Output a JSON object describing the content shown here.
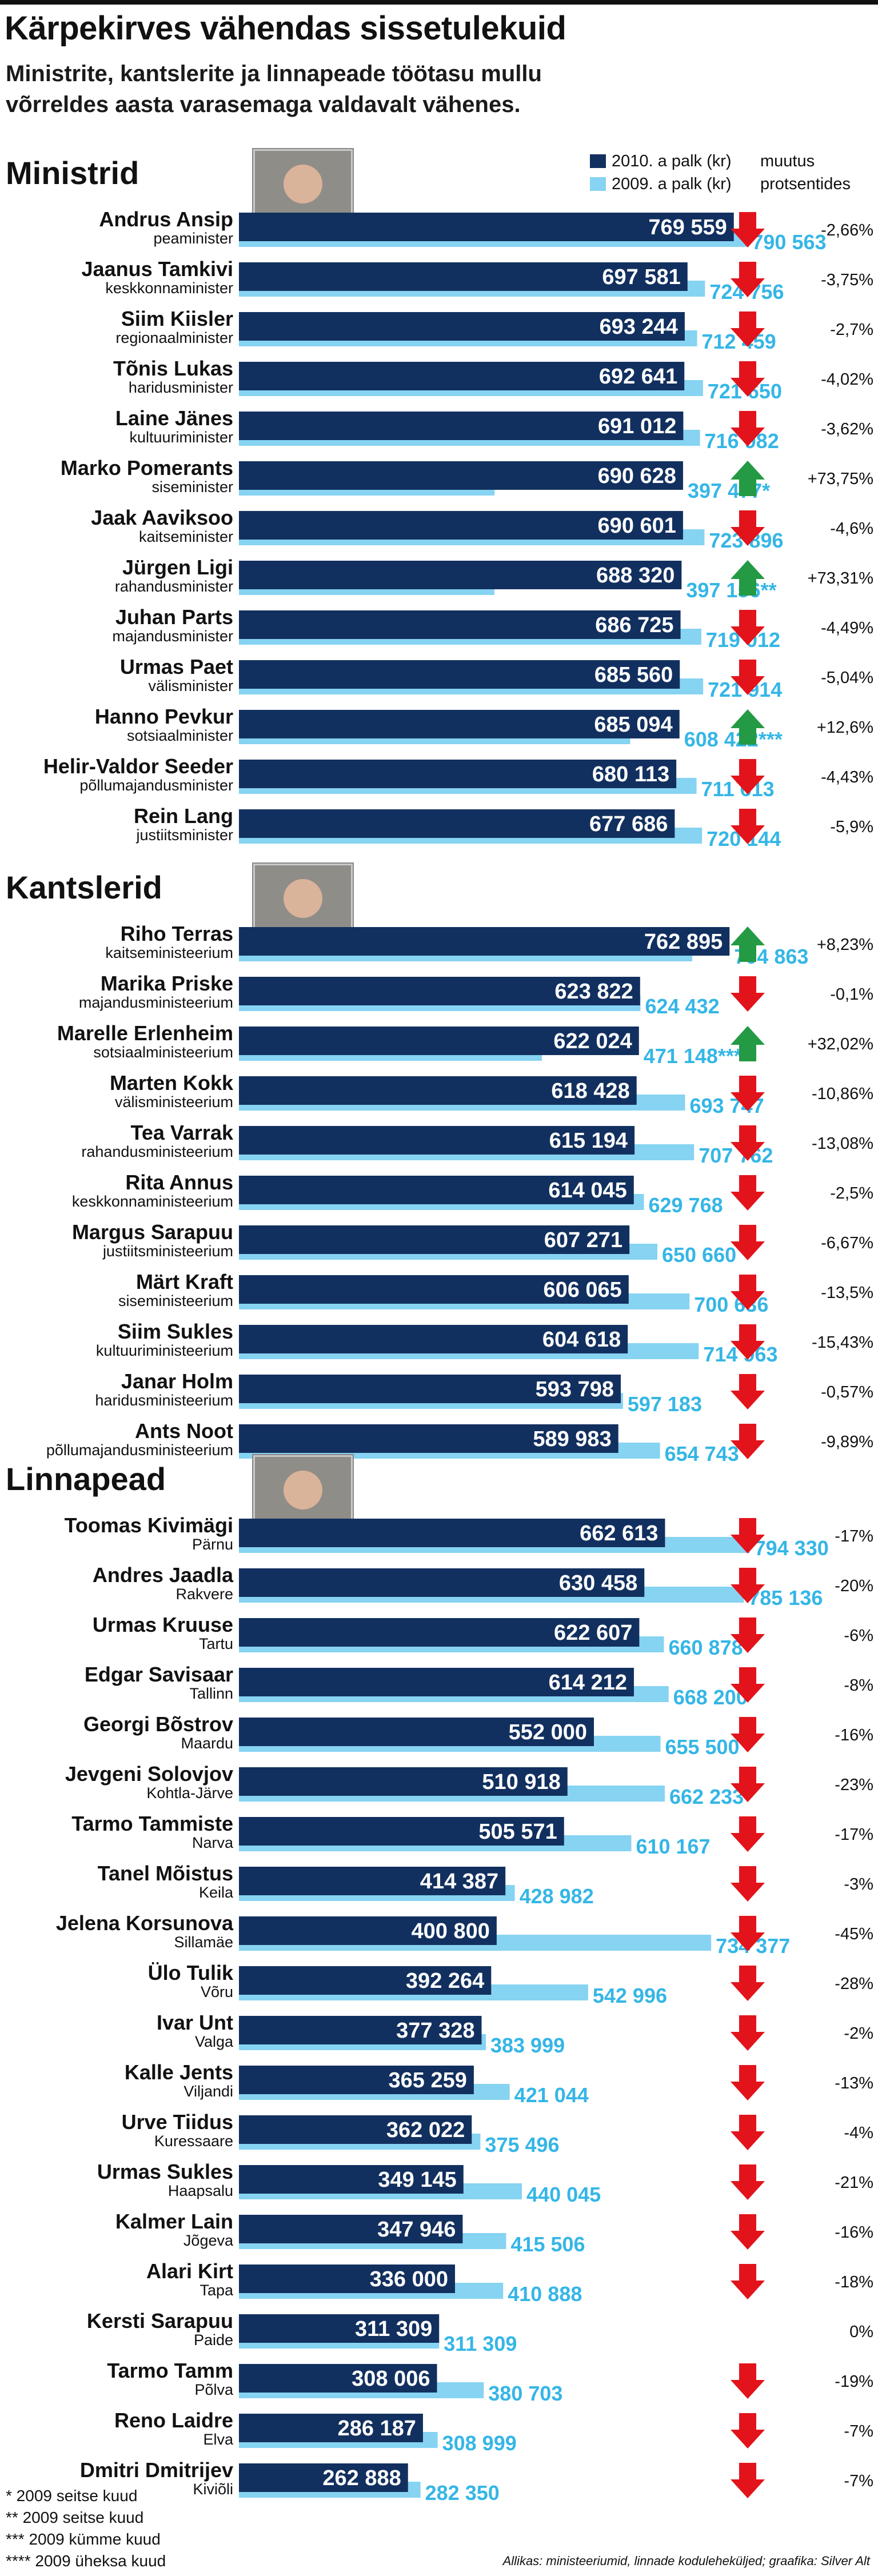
{
  "header": {
    "title": "Kärpekirves vähendas sissetulekuid",
    "subtitle": "Ministrite, kantslerite ja linnapeade töötasu mullu võrreldes aasta varasemaga valdavalt vähenes."
  },
  "legend": {
    "series_2010": "2010. a palk (kr)",
    "series_2009": "2009. a palk (kr)",
    "change_line1": "muutus",
    "change_line2": "protsentides"
  },
  "colors": {
    "bar_2010": "#12305f",
    "bar_2009": "#86d3f2",
    "label_2009": "#35b6e6",
    "arrow_down": "#e3131b",
    "arrow_up": "#239a43"
  },
  "footnotes": [
    "* 2009 seitse kuud",
    "** 2009 seitse kuud",
    "*** 2009 kümme kuud",
    "**** 2009 üheksa kuud"
  ],
  "source": "Allikas: ministeeriumid, linnade koduleheküljed; graafika: Silver Alt",
  "chart_data": [
    {
      "type": "bar",
      "title": "Ministrid",
      "photo": "portrait-icon",
      "xlim": [
        0,
        800000
      ],
      "rows": [
        {
          "name": "Andrus Ansip",
          "role": "peaminister",
          "v2010": 769559,
          "v2009": 790563,
          "label2010": "769 559",
          "label2009": "790 563",
          "change": "-2,66%",
          "dir": "down"
        },
        {
          "name": "Jaanus Tamkivi",
          "role": "keskkonnaminister",
          "v2010": 697581,
          "v2009": 724756,
          "label2010": "697 581",
          "label2009": "724 756",
          "change": "-3,75%",
          "dir": "down"
        },
        {
          "name": "Siim Kiisler",
          "role": "regionaalminister",
          "v2010": 693244,
          "v2009": 712459,
          "label2010": "693 244",
          "label2009": "712 459",
          "change": "-2,7%",
          "dir": "down"
        },
        {
          "name": "Tõnis Lukas",
          "role": "haridusminister",
          "v2010": 692641,
          "v2009": 721650,
          "label2010": "692 641",
          "label2009": "721 650",
          "change": "-4,02%",
          "dir": "down"
        },
        {
          "name": "Laine Jänes",
          "role": "kultuuriminister",
          "v2010": 691012,
          "v2009": 716982,
          "label2010": "691 012",
          "label2009": "716 982",
          "change": "-3,62%",
          "dir": "down"
        },
        {
          "name": "Marko Pomerants",
          "role": "siseminister",
          "v2010": 690628,
          "v2009": 397477,
          "label2010": "690 628",
          "label2009": "397 477*",
          "change": "+73,75%",
          "dir": "up"
        },
        {
          "name": "Jaak Aaviksoo",
          "role": "kaitseminister",
          "v2010": 690601,
          "v2009": 723896,
          "label2010": "690 601",
          "label2009": "723 896",
          "change": "-4,6%",
          "dir": "down"
        },
        {
          "name": "Jürgen Ligi",
          "role": "rahandusminister",
          "v2010": 688320,
          "v2009": 397156,
          "label2010": "688 320",
          "label2009": "397 156**",
          "change": "+73,31%",
          "dir": "up"
        },
        {
          "name": "Juhan Parts",
          "role": "majandusminister",
          "v2010": 686725,
          "v2009": 719012,
          "label2010": "686 725",
          "label2009": "719 012",
          "change": "-4,49%",
          "dir": "down"
        },
        {
          "name": "Urmas Paet",
          "role": "välisminister",
          "v2010": 685560,
          "v2009": 721914,
          "label2010": "685 560",
          "label2009": "721 914",
          "change": "-5,04%",
          "dir": "down"
        },
        {
          "name": "Hanno Pevkur",
          "role": "sotsiaalminister",
          "v2010": 685094,
          "v2009": 608422,
          "label2010": "685 094",
          "label2009": "608 422***",
          "change": "+12,6%",
          "dir": "up"
        },
        {
          "name": "Helir-Valdor Seeder",
          "role": "põllumajandusminister",
          "v2010": 680113,
          "v2009": 711613,
          "label2010": "680 113",
          "label2009": "711 613",
          "change": "-4,43%",
          "dir": "down"
        },
        {
          "name": "Rein Lang",
          "role": "justiitsminister",
          "v2010": 677686,
          "v2009": 720144,
          "label2010": "677 686",
          "label2009": "720 144",
          "change": "-5,9%",
          "dir": "down"
        }
      ]
    },
    {
      "type": "bar",
      "title": "Kantslerid",
      "photo": "portrait-icon",
      "xlim": [
        0,
        800000
      ],
      "rows": [
        {
          "name": "Riho Terras",
          "role": "kaitseministeerium",
          "v2010": 762895,
          "v2009": 704863,
          "label2010": "762 895",
          "label2009": "704 863",
          "change": "+8,23%",
          "dir": "up"
        },
        {
          "name": "Marika Priske",
          "role": "majandusministeerium",
          "v2010": 623822,
          "v2009": 624432,
          "label2010": "623 822",
          "label2009": "624 432",
          "change": "-0,1%",
          "dir": "down"
        },
        {
          "name": "Marelle Erlenheim",
          "role": "sotsiaalministeerium",
          "v2010": 622024,
          "v2009": 471148,
          "label2010": "622 024",
          "label2009": "471 148****",
          "change": "+32,02%",
          "dir": "up"
        },
        {
          "name": "Marten Kokk",
          "role": "välisministeerium",
          "v2010": 618428,
          "v2009": 693747,
          "label2010": "618 428",
          "label2009": "693 747",
          "change": "-10,86%",
          "dir": "down"
        },
        {
          "name": "Tea Varrak",
          "role": "rahandusministeerium",
          "v2010": 615194,
          "v2009": 707762,
          "label2010": "615 194",
          "label2009": "707 762",
          "change": "-13,08%",
          "dir": "down"
        },
        {
          "name": "Rita Annus",
          "role": "keskkonnaministeerium",
          "v2010": 614045,
          "v2009": 629768,
          "label2010": "614 045",
          "label2009": "629 768",
          "change": "-2,5%",
          "dir": "down"
        },
        {
          "name": "Margus Sarapuu",
          "role": "justiitsministeerium",
          "v2010": 607271,
          "v2009": 650660,
          "label2010": "607 271",
          "label2009": "650 660",
          "change": "-6,67%",
          "dir": "down"
        },
        {
          "name": "Märt Kraft",
          "role": "siseministeerium",
          "v2010": 606065,
          "v2009": 700636,
          "label2010": "606 065",
          "label2009": "700 636",
          "change": "-13,5%",
          "dir": "down"
        },
        {
          "name": "Siim Sukles",
          "role": "kultuuriministeerium",
          "v2010": 604618,
          "v2009": 714963,
          "label2010": "604 618",
          "label2009": "714 963",
          "change": "-15,43%",
          "dir": "down"
        },
        {
          "name": "Janar Holm",
          "role": "haridusministeerium",
          "v2010": 593798,
          "v2009": 597183,
          "label2010": "593 798",
          "label2009": "597 183",
          "change": "-0,57%",
          "dir": "down"
        },
        {
          "name": "Ants Noot",
          "role": "põllumajandusministeerium",
          "v2010": 589983,
          "v2009": 654743,
          "label2010": "589 983",
          "label2009": "654 743",
          "change": "-9,89%",
          "dir": "down"
        }
      ]
    },
    {
      "type": "bar",
      "title": "Linnapead",
      "photo": "portrait-icon",
      "xlim": [
        0,
        800000
      ],
      "rows": [
        {
          "name": "Toomas Kivimägi",
          "role": "Pärnu",
          "v2010": 662613,
          "v2009": 794330,
          "label2010": "662 613",
          "label2009": "794 330",
          "change": "-17%",
          "dir": "down"
        },
        {
          "name": "Andres Jaadla",
          "role": "Rakvere",
          "v2010": 630458,
          "v2009": 785136,
          "label2010": "630 458",
          "label2009": "785 136",
          "change": "-20%",
          "dir": "down"
        },
        {
          "name": "Urmas Kruuse",
          "role": "Tartu",
          "v2010": 622607,
          "v2009": 660878,
          "label2010": "622 607",
          "label2009": "660 878",
          "change": "-6%",
          "dir": "down"
        },
        {
          "name": "Edgar Savisaar",
          "role": "Tallinn",
          "v2010": 614212,
          "v2009": 668200,
          "label2010": "614 212",
          "label2009": "668 200",
          "change": "-8%",
          "dir": "down"
        },
        {
          "name": "Georgi Bõstrov",
          "role": "Maardu",
          "v2010": 552000,
          "v2009": 655500,
          "label2010": "552 000",
          "label2009": "655 500",
          "change": "-16%",
          "dir": "down"
        },
        {
          "name": "Jevgeni Solovjov",
          "role": "Kohtla-Järve",
          "v2010": 510918,
          "v2009": 662233,
          "label2010": "510 918",
          "label2009": "662 233",
          "change": "-23%",
          "dir": "down"
        },
        {
          "name": "Tarmo Tammiste",
          "role": "Narva",
          "v2010": 505571,
          "v2009": 610167,
          "label2010": "505 571",
          "label2009": "610 167",
          "change": "-17%",
          "dir": "down"
        },
        {
          "name": "Tanel Mõistus",
          "role": "Keila",
          "v2010": 414387,
          "v2009": 428982,
          "label2010": "414 387",
          "label2009": "428 982",
          "change": "-3%",
          "dir": "down"
        },
        {
          "name": "Jelena Korsunova",
          "role": "Sillamäe",
          "v2010": 400800,
          "v2009": 734377,
          "label2010": "400 800",
          "label2009": "734 377",
          "change": "-45%",
          "dir": "down"
        },
        {
          "name": "Ülo Tulik",
          "role": "Võru",
          "v2010": 392264,
          "v2009": 542996,
          "label2010": "392 264",
          "label2009": "542 996",
          "change": "-28%",
          "dir": "down"
        },
        {
          "name": "Ivar Unt",
          "role": "Valga",
          "v2010": 377328,
          "v2009": 383999,
          "label2010": "377 328",
          "label2009": "383 999",
          "change": "-2%",
          "dir": "down"
        },
        {
          "name": "Kalle Jents",
          "role": "Viljandi",
          "v2010": 365259,
          "v2009": 421044,
          "label2010": "365 259",
          "label2009": "421 044",
          "change": "-13%",
          "dir": "down"
        },
        {
          "name": "Urve Tiidus",
          "role": "Kuressaare",
          "v2010": 362022,
          "v2009": 375496,
          "label2010": "362 022",
          "label2009": "375 496",
          "change": "-4%",
          "dir": "down"
        },
        {
          "name": "Urmas Sukles",
          "role": "Haapsalu",
          "v2010": 349145,
          "v2009": 440045,
          "label2010": "349 145",
          "label2009": "440 045",
          "change": "-21%",
          "dir": "down"
        },
        {
          "name": "Kalmer Lain",
          "role": "Jõgeva",
          "v2010": 347946,
          "v2009": 415506,
          "label2010": "347 946",
          "label2009": "415 506",
          "change": "-16%",
          "dir": "down"
        },
        {
          "name": "Alari Kirt",
          "role": "Tapa",
          "v2010": 336000,
          "v2009": 410888,
          "label2010": "336 000",
          "label2009": "410 888",
          "change": "-18%",
          "dir": "down"
        },
        {
          "name": "Kersti Sarapuu",
          "role": "Paide",
          "v2010": 311309,
          "v2009": 311309,
          "label2010": "311 309",
          "label2009": "311 309",
          "change": "0%",
          "dir": "none"
        },
        {
          "name": "Tarmo Tamm",
          "role": "Põlva",
          "v2010": 308006,
          "v2009": 380703,
          "label2010": "308 006",
          "label2009": "380 703",
          "change": "-19%",
          "dir": "down"
        },
        {
          "name": "Reno Laidre",
          "role": "Elva",
          "v2010": 286187,
          "v2009": 308999,
          "label2010": "286 187",
          "label2009": "308 999",
          "change": "-7%",
          "dir": "down"
        },
        {
          "name": "Dmitri Dmitrijev",
          "role": "Kiviõli",
          "v2010": 262888,
          "v2009": 282350,
          "label2010": "262 888",
          "label2009": "282 350",
          "change": "-7%",
          "dir": "down"
        }
      ]
    }
  ]
}
